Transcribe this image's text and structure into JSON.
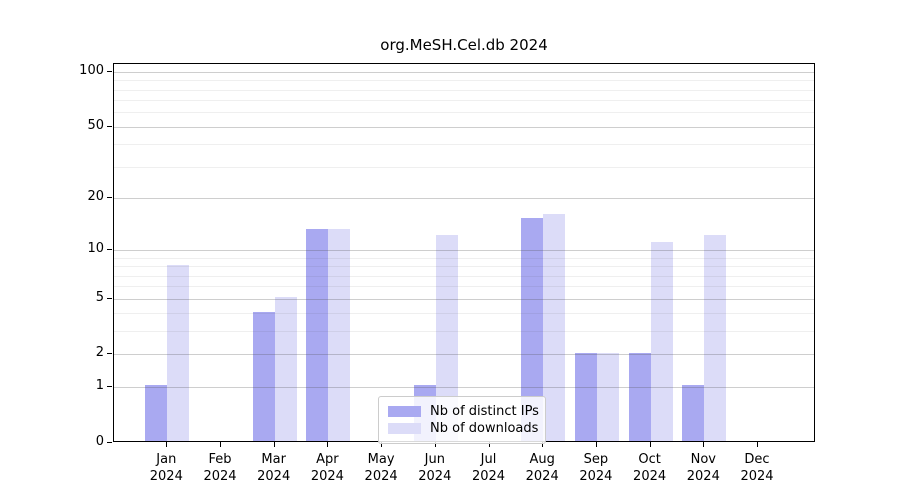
{
  "title": "org.MeSH.Cel.db 2024",
  "chart_data": {
    "type": "bar",
    "categories": [
      "Jan",
      "Feb",
      "Mar",
      "Apr",
      "May",
      "Jun",
      "Jul",
      "Aug",
      "Sep",
      "Oct",
      "Nov",
      "Dec"
    ],
    "year": "2024",
    "series": [
      {
        "name": "Nb of distinct IPs",
        "color": "#a9a9f1",
        "values": [
          1,
          0,
          4,
          13,
          0,
          1,
          0,
          15,
          2,
          2,
          1,
          0
        ]
      },
      {
        "name": "Nb of downloads",
        "color": "#dcdcf8",
        "values": [
          8,
          0,
          5,
          13,
          0,
          12,
          0,
          16,
          2,
          11,
          12,
          0
        ]
      }
    ],
    "title": "org.MeSH.Cel.db 2024",
    "xlabel": "",
    "ylabel": "",
    "yscale": "log1p",
    "ylim": [
      0,
      110
    ],
    "yticks_major": [
      0,
      1,
      2,
      5,
      10,
      20,
      50,
      100
    ],
    "yticks_minor": [
      3,
      4,
      6,
      7,
      8,
      9,
      30,
      40,
      60,
      70,
      80,
      90
    ],
    "grid": "on",
    "legend_position": "lower center"
  }
}
